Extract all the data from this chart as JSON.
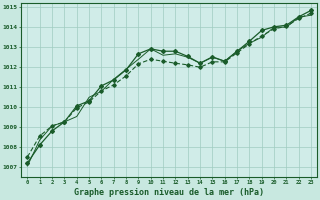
{
  "xlabel": "Graphe pression niveau de la mer (hPa)",
  "background_color": "#c8e8e0",
  "plot_bg_color": "#d0ece8",
  "grid_color": "#a0ccc0",
  "line_color": "#1a5c2a",
  "xlim": [
    -0.5,
    23.5
  ],
  "ylim": [
    1006.5,
    1015.2
  ],
  "yticks": [
    1007,
    1008,
    1009,
    1010,
    1011,
    1012,
    1013,
    1014,
    1015
  ],
  "xticks": [
    0,
    1,
    2,
    3,
    4,
    5,
    6,
    7,
    8,
    9,
    10,
    11,
    12,
    13,
    14,
    15,
    16,
    17,
    18,
    19,
    20,
    21,
    22,
    23
  ],
  "series1_x": [
    0,
    1,
    2,
    3,
    4,
    5,
    6,
    7,
    8,
    9,
    10,
    11,
    12,
    13,
    14,
    15,
    16,
    17,
    18,
    19,
    20,
    21,
    22,
    23
  ],
  "series1_y": [
    1007.2,
    1008.1,
    1008.8,
    1009.25,
    1010.05,
    1010.3,
    1011.05,
    1011.35,
    1011.85,
    1012.65,
    1012.9,
    1012.78,
    1012.78,
    1012.52,
    1012.18,
    1012.5,
    1012.28,
    1012.78,
    1013.28,
    1013.82,
    1014.0,
    1014.08,
    1014.5,
    1014.82
  ],
  "series2_x": [
    0,
    1,
    2,
    3,
    4,
    5,
    6,
    7,
    8,
    9,
    10,
    11,
    12,
    13,
    14,
    15,
    16,
    17,
    18,
    19,
    20,
    21,
    22,
    23
  ],
  "series2_y": [
    1007.5,
    1008.55,
    1009.05,
    1009.25,
    1009.95,
    1010.25,
    1010.8,
    1011.1,
    1011.55,
    1012.15,
    1012.38,
    1012.28,
    1012.18,
    1012.1,
    1011.98,
    1012.25,
    1012.25,
    1012.7,
    1013.15,
    1013.55,
    1013.9,
    1014.02,
    1014.42,
    1014.68
  ],
  "series3_x": [
    0,
    1,
    2,
    3,
    4,
    5,
    6,
    7,
    8,
    9,
    10,
    11,
    12,
    13,
    14,
    15,
    16,
    17,
    18,
    19,
    20,
    21,
    22,
    23
  ],
  "series3_y": [
    1007.05,
    1008.35,
    1009.05,
    1009.25,
    1009.52,
    1010.48,
    1010.78,
    1011.38,
    1011.88,
    1012.38,
    1012.9,
    1012.58,
    1012.65,
    1012.48,
    1012.18,
    1012.48,
    1012.28,
    1012.78,
    1013.18,
    1013.48,
    1013.98,
    1013.98,
    1014.48,
    1014.58
  ]
}
